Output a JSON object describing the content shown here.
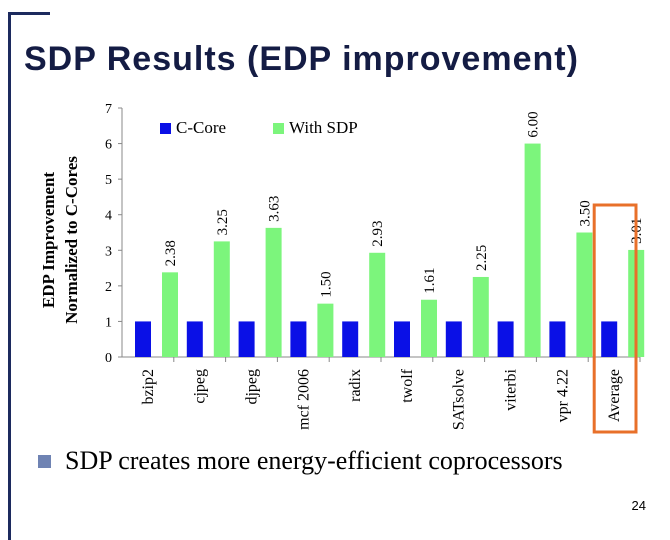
{
  "slide": {
    "title": "SDP Results (EDP improvement)",
    "bullet": "SDP creates more energy-efficient coprocessors",
    "page_number": "24"
  },
  "chart_data": {
    "type": "bar",
    "ylabel_line1": "EDP  Improvement",
    "ylabel_line2": "Normalized to C-Cores",
    "ylim": [
      0,
      7
    ],
    "yticks": [
      "0",
      "1",
      "2",
      "3",
      "4",
      "5",
      "6",
      "7"
    ],
    "categories": [
      "bzip2",
      "cjpeg",
      "djpeg",
      "mcf 2006",
      "radix",
      "twolf",
      "SATsolve",
      "viterbi",
      "vpr 4.22",
      "Average"
    ],
    "series": [
      {
        "name": "C-Core",
        "color": "#0a10e6",
        "values": [
          1,
          1,
          1,
          1,
          1,
          1,
          1,
          1,
          1,
          1
        ]
      },
      {
        "name": "With SDP",
        "color": "#7cf57c",
        "values": [
          2.38,
          3.25,
          3.63,
          1.5,
          2.93,
          1.61,
          2.25,
          6.0,
          3.5,
          3.01
        ],
        "labels": [
          "2.38",
          "3.25",
          "3.63",
          "1.50",
          "2.93",
          "1.61",
          "2.25",
          "6.00",
          "3.50",
          "3.01"
        ]
      }
    ],
    "legend_position": "top-left",
    "highlight": {
      "category": "Average",
      "color": "#e8702a"
    },
    "grid": false
  }
}
